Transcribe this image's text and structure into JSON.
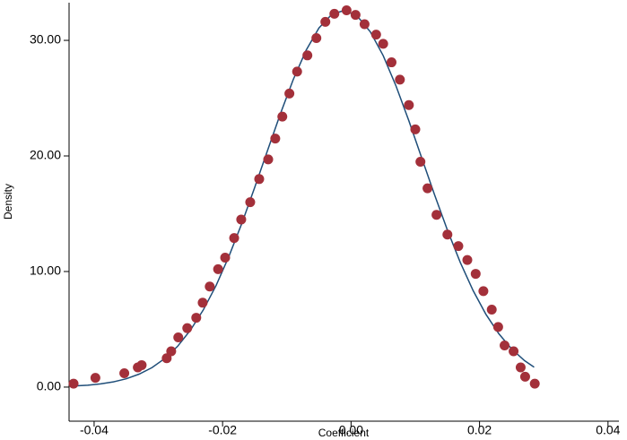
{
  "chart_data": {
    "type": "scatter",
    "xlabel": "Coefficient",
    "ylabel": "Density",
    "xlim": [
      -0.0439,
      0.0417
    ],
    "ylim": [
      -2.95,
      33.26
    ],
    "xticks": [
      -0.04,
      -0.02,
      {
        "value": 0,
        "label": "0.00"
      },
      0.02,
      0.04
    ],
    "yticks": [
      {
        "value": 0,
        "label": "0.00"
      },
      {
        "value": 10,
        "label": "10.00"
      },
      {
        "value": 20,
        "label": "20.00"
      },
      {
        "value": 30,
        "label": "30.00"
      }
    ],
    "series": [
      {
        "type": "scatter",
        "color": "#a3303a",
        "x": [
          -0.0432,
          -0.0398,
          -0.0353,
          -0.0332,
          -0.0326,
          -0.0287,
          -0.028,
          -0.0269,
          -0.0255,
          -0.0241,
          -0.0231,
          -0.022,
          -0.0207,
          -0.0196,
          -0.0182,
          -0.0171,
          -0.0157,
          -0.0143,
          -0.0129,
          -0.0118,
          -0.0107,
          -0.0096,
          -0.0084,
          -0.0068,
          -0.0054,
          -0.004,
          -0.0026,
          -0.0007,
          0.0007,
          0.0021,
          0.0039,
          0.005,
          0.0063,
          0.0076,
          0.009,
          0.01,
          0.0108,
          0.0119,
          0.0133,
          0.015,
          0.0167,
          0.0181,
          0.0194,
          0.0206,
          0.0219,
          0.0229,
          0.0239,
          0.0253,
          0.0264,
          0.0271,
          0.0286
        ],
        "values": [
          0.3,
          0.8,
          1.2,
          1.7,
          1.9,
          2.5,
          3.1,
          4.3,
          5.1,
          6.0,
          7.3,
          8.7,
          10.2,
          11.2,
          12.9,
          14.5,
          16.0,
          18.0,
          19.7,
          21.5,
          23.4,
          25.4,
          27.3,
          28.7,
          30.2,
          31.6,
          32.3,
          32.6,
          32.2,
          31.4,
          30.5,
          29.7,
          28.1,
          26.6,
          24.4,
          22.3,
          19.5,
          17.2,
          14.9,
          13.2,
          12.2,
          11.0,
          9.8,
          8.3,
          6.7,
          5.2,
          3.6,
          3.1,
          1.7,
          0.9,
          0.3
        ]
      },
      {
        "type": "line",
        "color": "#1f4e79",
        "x": [
          -0.043,
          -0.041,
          -0.039,
          -0.037,
          -0.035,
          -0.033,
          -0.031,
          -0.029,
          -0.027,
          -0.025,
          -0.023,
          -0.021,
          -0.019,
          -0.017,
          -0.015,
          -0.013,
          -0.011,
          -0.009,
          -0.007,
          -0.005,
          -0.003,
          -0.001,
          0.001,
          0.003,
          0.005,
          0.007,
          0.009,
          0.011,
          0.013,
          0.015,
          0.017,
          0.019,
          0.021,
          0.023,
          0.025,
          0.027,
          0.0285
        ],
        "values": [
          0.1,
          0.16,
          0.28,
          0.45,
          0.72,
          1.12,
          1.68,
          2.47,
          3.53,
          4.93,
          6.68,
          8.8,
          11.33,
          14.17,
          17.28,
          20.48,
          23.65,
          26.61,
          29.14,
          31.07,
          32.25,
          32.6,
          32.08,
          30.74,
          28.68,
          26.05,
          23.04,
          19.83,
          16.64,
          13.58,
          10.79,
          8.35,
          6.29,
          4.62,
          3.3,
          2.29,
          1.72
        ]
      }
    ]
  }
}
